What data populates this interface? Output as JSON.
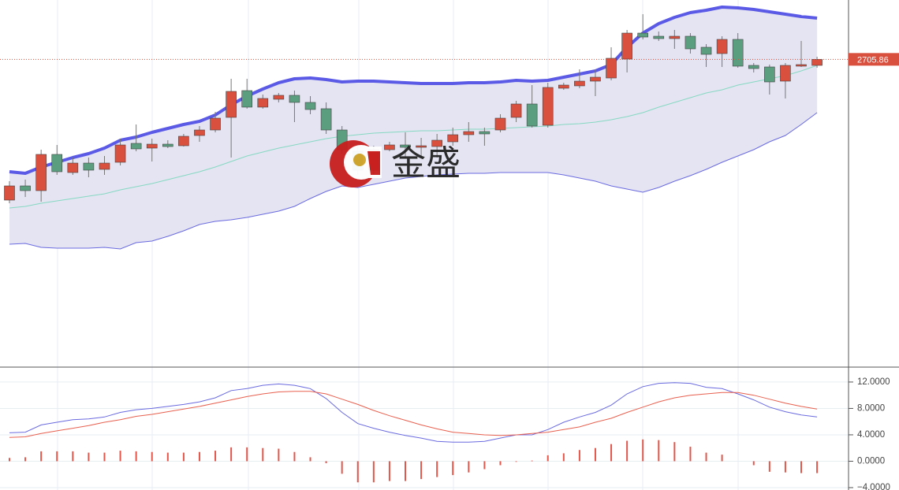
{
  "watermark": "金盛",
  "chart_data": [
    {
      "type": "candlestick",
      "ylim": [
        2550,
        2736
      ],
      "last_price": 2705.86,
      "up_color": "#d9503f",
      "down_color": "#5a9e7f",
      "open": [
        2634.4,
        2641.6,
        2639.2,
        2657.6,
        2648.4,
        2653.2,
        2650,
        2653.6,
        2663.2,
        2660.8,
        2662.8,
        2662,
        2667.2,
        2670,
        2676.4,
        2690,
        2681.6,
        2685.6,
        2687.6,
        2684,
        2680.8,
        2670,
        2659.2,
        2649.6,
        2660,
        2662.4,
        2661.2,
        2661.6,
        2664,
        2667.6,
        2669.2,
        2670,
        2676.4,
        2683.2,
        2672.4,
        2691.2,
        2692.4,
        2694.8,
        2696.4,
        2706,
        2719.2,
        2717.6,
        2716.4,
        2717.6,
        2712,
        2708.8,
        2716,
        2702.8,
        2702,
        2694.8,
        2702.4,
        2702.8
      ],
      "high": [
        2644,
        2644.8,
        2660,
        2662.4,
        2656,
        2656,
        2656.8,
        2665.6,
        2672.8,
        2665.6,
        2664.8,
        2668,
        2672,
        2679.2,
        2696,
        2696,
        2688,
        2688.8,
        2690,
        2687.2,
        2684,
        2672,
        2662,
        2662,
        2664,
        2668.8,
        2666,
        2668,
        2671.2,
        2674,
        2671.2,
        2678,
        2684.8,
        2692.8,
        2694,
        2694,
        2700.8,
        2700.8,
        2712,
        2720.8,
        2728.8,
        2720,
        2720.8,
        2719.2,
        2713.6,
        2717.6,
        2719.2,
        2704,
        2703.2,
        2704,
        2715.2,
        2707.2
      ],
      "low": [
        2632.8,
        2636,
        2633.6,
        2647.2,
        2647.2,
        2646,
        2647.2,
        2652,
        2659.2,
        2654,
        2660.8,
        2661.6,
        2664,
        2668.8,
        2656,
        2680.8,
        2680.8,
        2684,
        2674,
        2678,
        2668,
        2658,
        2647.2,
        2647.2,
        2659.2,
        2656,
        2656,
        2656,
        2662,
        2664,
        2662,
        2668.8,
        2674,
        2671.2,
        2671.2,
        2690.4,
        2691.2,
        2687.2,
        2695.2,
        2699.2,
        2716,
        2715.2,
        2711.2,
        2708.8,
        2702,
        2702,
        2701.6,
        2699.2,
        2688,
        2686,
        2702,
        2701.6
      ],
      "close": [
        2641.6,
        2639.2,
        2657.6,
        2648.8,
        2653.2,
        2649.6,
        2653.2,
        2662.4,
        2660.4,
        2662.8,
        2661.6,
        2666.8,
        2670,
        2676,
        2689.6,
        2681.6,
        2686,
        2687.6,
        2684,
        2680.4,
        2670,
        2660,
        2649.6,
        2660,
        2662.4,
        2661.2,
        2662,
        2664.8,
        2667.6,
        2669.2,
        2668,
        2676,
        2683.2,
        2672,
        2691.6,
        2692.8,
        2694.8,
        2696.8,
        2706.4,
        2719.2,
        2717.2,
        2716.4,
        2717.6,
        2711.2,
        2708.4,
        2716,
        2702.4,
        2701.2,
        2694.4,
        2702.8,
        2703.2,
        2705.86
      ],
      "bands": {
        "fill": "#e4e4f2",
        "upper_color": "#5a5ae6",
        "middle_color": "#86d9c2",
        "lower_color": "#6a6ae0",
        "upper": [
          2648.8,
          2648,
          2651.2,
          2653.6,
          2656,
          2658,
          2660.8,
          2664.8,
          2666.4,
          2668.8,
          2670.8,
          2672.8,
          2674.4,
          2677.6,
          2682.8,
          2687.2,
          2690.8,
          2694,
          2696,
          2696.4,
          2695.6,
          2694.4,
          2694.8,
          2694.8,
          2694.4,
          2694,
          2693.6,
          2693.6,
          2693.6,
          2694,
          2694,
          2694.4,
          2695.2,
          2694.8,
          2695.2,
          2696.8,
          2698.4,
          2700,
          2703.2,
          2712,
          2719.2,
          2724,
          2727.2,
          2729.6,
          2730.8,
          2732.4,
          2732,
          2731.2,
          2730,
          2728.8,
          2727.6,
          2726.8
        ],
        "middle": [
          2630.4,
          2631.2,
          2632.8,
          2634,
          2635.2,
          2636.4,
          2637.6,
          2639.6,
          2641.2,
          2642.8,
          2644.8,
          2646.8,
          2648.8,
          2651.2,
          2654,
          2656.8,
          2658.8,
          2660.8,
          2662.4,
          2664,
          2665.6,
          2666.8,
          2667.6,
          2668.4,
          2668.8,
          2669.2,
          2669.6,
          2669.6,
          2670,
          2670.4,
          2670.4,
          2670.8,
          2671.2,
          2671.6,
          2672,
          2672.8,
          2673.2,
          2674,
          2675.2,
          2676.8,
          2678.8,
          2681.6,
          2684,
          2686.4,
          2688.8,
          2690.4,
          2692.8,
          2694.4,
          2696,
          2697.6,
          2700,
          2702.8
        ],
        "lower": [
          2612,
          2612.4,
          2610.4,
          2610,
          2610,
          2610,
          2610.4,
          2609.6,
          2612.8,
          2613.6,
          2616,
          2618.8,
          2622,
          2623.6,
          2624.4,
          2625.6,
          2627.2,
          2628.8,
          2631.2,
          2635.2,
          2638.8,
          2641.6,
          2640.8,
          2642.4,
          2644,
          2645.6,
          2646.4,
          2647.2,
          2647.6,
          2648,
          2648,
          2648.4,
          2648.4,
          2648.4,
          2648.4,
          2647.2,
          2645.6,
          2644,
          2641.6,
          2640,
          2638.4,
          2640.8,
          2644,
          2646.8,
          2650,
          2653.6,
          2656.8,
          2660,
          2664,
          2667.2,
          2672.8,
          2678.8
        ]
      }
    },
    {
      "type": "macd",
      "ylim": [
        -4.36,
        14.14
      ],
      "yticks": [
        {
          "value": 12,
          "label": "12.0000"
        },
        {
          "value": 8,
          "label": "8.0000"
        },
        {
          "value": 4,
          "label": "4.0000"
        },
        {
          "value": 0,
          "label": "0.0000"
        },
        {
          "value": -4,
          "label": "−4.0000"
        }
      ],
      "grid": true,
      "hist_color": "#e2574c",
      "dif_color": "#6a6ae0",
      "dea_color": "#e8604f",
      "hist": [
        0.5,
        0.6,
        1.5,
        1.5,
        1.5,
        1.3,
        1.3,
        1.6,
        1.5,
        1.4,
        1.3,
        1.3,
        1.4,
        1.6,
        2.1,
        2.1,
        2,
        1.9,
        1.4,
        0.6,
        -0.3,
        -1.9,
        -3.2,
        -3.2,
        -3,
        -3,
        -2.7,
        -2.4,
        -2.1,
        -1.7,
        -1.2,
        -0.6,
        -0.1,
        0.1,
        0.9,
        1.2,
        1.7,
        2,
        2.6,
        3.1,
        3.3,
        3.2,
        2.9,
        2.2,
        1.3,
        1,
        0,
        -0.6,
        -1.6,
        -1.7,
        -1.8,
        -1.8
      ],
      "dif": [
        4.3,
        4.4,
        5.5,
        5.9,
        6.3,
        6.4,
        6.7,
        7.4,
        7.8,
        8,
        8.3,
        8.6,
        9,
        9.6,
        10.7,
        11,
        11.5,
        11.7,
        11.5,
        11,
        9.5,
        7.4,
        5.7,
        5,
        4.4,
        3.9,
        3.5,
        3,
        2.9,
        2.9,
        3,
        3.5,
        4,
        4,
        4.8,
        5.9,
        6.7,
        7.4,
        8.5,
        10.2,
        11.3,
        11.8,
        11.9,
        11.8,
        11.2,
        11,
        10.2,
        9.3,
        8.2,
        7.5,
        7,
        6.7
      ],
      "dea": [
        3.6,
        3.7,
        4.2,
        4.6,
        5,
        5.4,
        5.9,
        6.3,
        6.8,
        7.1,
        7.5,
        7.9,
        8.3,
        8.8,
        9.3,
        9.8,
        10.2,
        10.5,
        10.6,
        10.6,
        10.2,
        9.4,
        8.6,
        7.7,
        6.9,
        6.2,
        5.5,
        4.9,
        4.4,
        4.2,
        4,
        3.9,
        4,
        4.2,
        4.4,
        4.8,
        5.2,
        5.9,
        6.5,
        7.4,
        8.2,
        9,
        9.6,
        10,
        10.2,
        10.4,
        10.4,
        10,
        9.4,
        8.8,
        8.3,
        7.9
      ]
    }
  ]
}
